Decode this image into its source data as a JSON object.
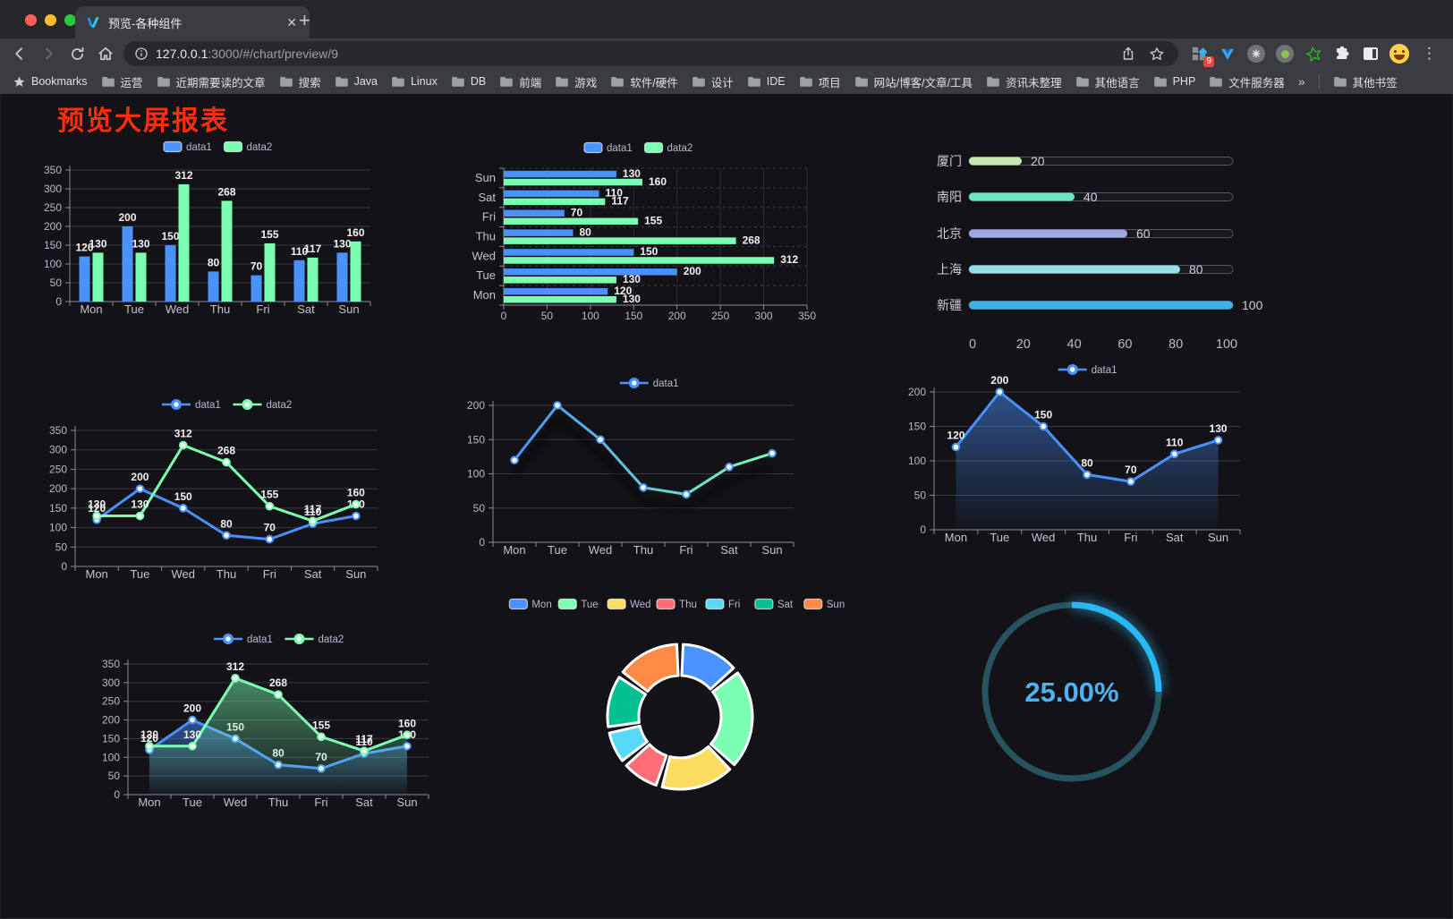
{
  "browser": {
    "tab_title": "预览-各种组件",
    "tab_close": "✕",
    "new_tab": "+",
    "url_host": "127.0.0.1",
    "url_rest": ":3000/#/chart/preview/9",
    "extension_badge": "9",
    "bookmarks_label": "Bookmarks",
    "bookmark_folders": [
      "运营",
      "近期需要读的文章",
      "搜索",
      "Java",
      "Linux",
      "DB",
      "前端",
      "游戏",
      "软件/硬件",
      "设计",
      "IDE",
      "项目",
      "网站/博客/文章/工具",
      "资讯未整理",
      "其他语言",
      "PHP",
      "文件服务器"
    ],
    "bookmarks_overflow": "»",
    "other_bookmarks": "其他书签"
  },
  "page": {
    "title": "预览大屏报表"
  },
  "colors": {
    "accent_blue": "#4992ff",
    "accent_green": "#7cffb2",
    "axis_text": "#b9b8ce",
    "category_text": "#c3c2d4",
    "value_label": "#f2f2f4",
    "grid_line": "#3a3a45",
    "axis_line": "#8a8a9b",
    "title_red": "#fe2d0e",
    "gauge_track": "#27535f",
    "gauge_progress": "#29b7f6",
    "gauge_text": "#4fb2ef"
  },
  "chart_data": [
    {
      "id": "bar_v",
      "type": "bar",
      "categories": [
        "Mon",
        "Tue",
        "Wed",
        "Thu",
        "Fri",
        "Sat",
        "Sun"
      ],
      "series": [
        {
          "name": "data1",
          "color": "#4992ff",
          "values": [
            120,
            200,
            150,
            80,
            70,
            110,
            130
          ]
        },
        {
          "name": "data2",
          "color": "#7cffb2",
          "values": [
            130,
            130,
            312,
            268,
            155,
            117,
            160
          ]
        }
      ],
      "ylim": [
        0,
        350
      ],
      "ytick": 50,
      "labels": true,
      "legend_position": "top",
      "grid": true
    },
    {
      "id": "bar_h",
      "type": "bar-horizontal",
      "categories_top_to_bottom": [
        "Sun",
        "Sat",
        "Fri",
        "Thu",
        "Wed",
        "Tue",
        "Mon"
      ],
      "series": [
        {
          "name": "data1",
          "color": "#4992ff",
          "values_top_to_bottom": [
            130,
            110,
            70,
            80,
            150,
            200,
            120
          ]
        },
        {
          "name": "data2",
          "color": "#7cffb2",
          "values_top_to_bottom": [
            160,
            117,
            155,
            268,
            312,
            130,
            130
          ]
        }
      ],
      "xlim": [
        0,
        350
      ],
      "xtick": 50,
      "labels": true,
      "legend_position": "top",
      "grid": true
    },
    {
      "id": "progress",
      "type": "progress-bars",
      "items": [
        {
          "label": "厦门",
          "value": 20,
          "color": "#c4ebad"
        },
        {
          "label": "南阳",
          "value": 40,
          "color": "#6be6c1"
        },
        {
          "label": "北京",
          "value": 60,
          "color": "#a0a7e6"
        },
        {
          "label": "上海",
          "value": 80,
          "color": "#96dee8"
        },
        {
          "label": "新疆",
          "value": 100,
          "color": "#3fb1e3"
        }
      ],
      "xlim": [
        0,
        100
      ],
      "xticks": [
        0,
        20,
        40,
        60,
        80,
        100
      ]
    },
    {
      "id": "line_basic",
      "type": "line",
      "categories": [
        "Mon",
        "Tue",
        "Wed",
        "Thu",
        "Fri",
        "Sat",
        "Sun"
      ],
      "series": [
        {
          "name": "data1",
          "color": "#4992ff",
          "values": [
            120,
            200,
            150,
            80,
            70,
            110,
            130
          ]
        },
        {
          "name": "data2",
          "color": "#7cffb2",
          "values": [
            130,
            130,
            312,
            268,
            155,
            117,
            160
          ]
        }
      ],
      "ylim": [
        0,
        350
      ],
      "ytick": 50,
      "labels": true,
      "legend_position": "top",
      "grid": true
    },
    {
      "id": "line_gradient",
      "type": "line",
      "categories": [
        "Mon",
        "Tue",
        "Wed",
        "Thu",
        "Fri",
        "Sat",
        "Sun"
      ],
      "series": [
        {
          "name": "data1",
          "color": "#4992ff",
          "gradient": [
            "#4992ff",
            "#7cffb2"
          ],
          "values": [
            120,
            200,
            150,
            80,
            70,
            110,
            130
          ]
        }
      ],
      "ylim": [
        0,
        200
      ],
      "ytick": 50,
      "labels": false,
      "shadow": true,
      "legend_position": "top",
      "grid": true
    },
    {
      "id": "line_area_single",
      "type": "area",
      "categories": [
        "Mon",
        "Tue",
        "Wed",
        "Thu",
        "Fri",
        "Sat",
        "Sun"
      ],
      "series": [
        {
          "name": "data1",
          "color": "#4992ff",
          "area": true,
          "values": [
            120,
            200,
            150,
            80,
            70,
            110,
            130
          ]
        }
      ],
      "ylim": [
        0,
        200
      ],
      "ytick": 50,
      "labels": true,
      "legend_position": "top",
      "grid": true
    },
    {
      "id": "line_area_double",
      "type": "area",
      "categories": [
        "Mon",
        "Tue",
        "Wed",
        "Thu",
        "Fri",
        "Sat",
        "Sun"
      ],
      "series": [
        {
          "name": "data1",
          "color": "#4992ff",
          "area": true,
          "values": [
            120,
            200,
            150,
            80,
            70,
            110,
            130
          ]
        },
        {
          "name": "data2",
          "color": "#7cffb2",
          "area": true,
          "values": [
            130,
            130,
            312,
            268,
            155,
            117,
            160
          ]
        }
      ],
      "ylim": [
        0,
        350
      ],
      "ytick": 50,
      "labels": true,
      "legend_position": "top",
      "grid": true
    },
    {
      "id": "pie_rose",
      "type": "pie",
      "title": "",
      "legend_position": "top",
      "donut": true,
      "items": [
        {
          "name": "Mon",
          "value": 120,
          "color": "#4992ff"
        },
        {
          "name": "Tue",
          "value": 200,
          "color": "#7cffb2"
        },
        {
          "name": "Wed",
          "value": 150,
          "color": "#fddd60"
        },
        {
          "name": "Thu",
          "value": 80,
          "color": "#ff6e76"
        },
        {
          "name": "Fri",
          "value": 70,
          "color": "#58d9f9"
        },
        {
          "name": "Sat",
          "value": 110,
          "color": "#05c091"
        },
        {
          "name": "Sun",
          "value": 130,
          "color": "#ff8a45"
        }
      ]
    },
    {
      "id": "gauge_ring",
      "type": "gauge",
      "percent": 25,
      "value_text": "25.00%"
    }
  ]
}
